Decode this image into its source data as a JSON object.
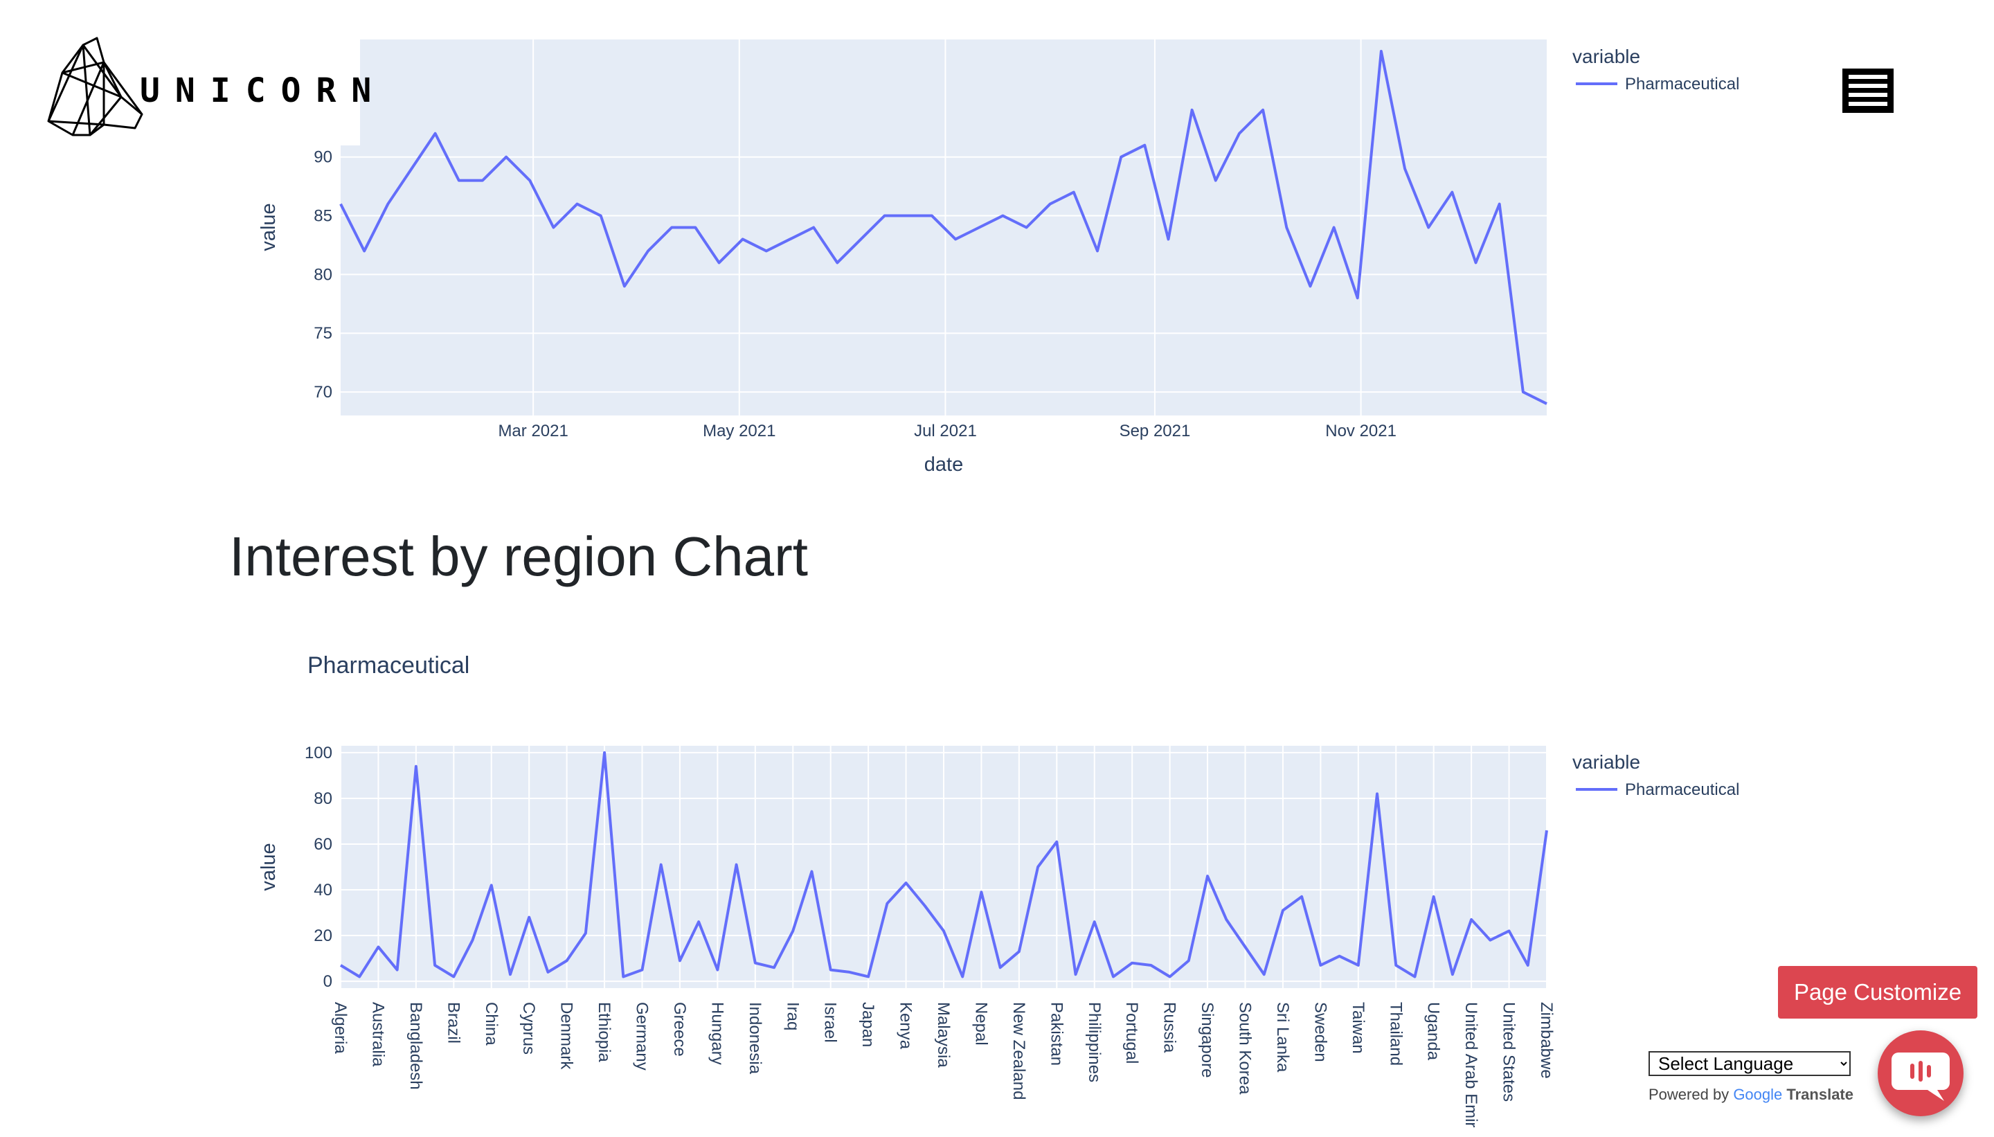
{
  "logo": {
    "text": "UNICORN"
  },
  "chart1": {
    "chart_data": {
      "type": "line",
      "title": "",
      "xlabel": "date",
      "ylabel": "value",
      "x_ticks": [
        "Mar 2021",
        "May 2021",
        "Jul 2021",
        "Sep 2021",
        "Nov 2021"
      ],
      "y_ticks": [
        "70",
        "75",
        "80",
        "85",
        "90"
      ],
      "ylim": [
        68,
        100
      ],
      "xlim": [
        "2021-01-03",
        "2021-12-26"
      ],
      "legend_title": "variable",
      "series": [
        {
          "name": "Pharmaceutical",
          "x": [
            "2021-01-03",
            "2021-01-10",
            "2021-01-17",
            "2021-01-24",
            "2021-01-31",
            "2021-02-07",
            "2021-02-14",
            "2021-02-21",
            "2021-02-28",
            "2021-03-07",
            "2021-03-14",
            "2021-03-21",
            "2021-03-28",
            "2021-04-04",
            "2021-04-11",
            "2021-04-18",
            "2021-04-25",
            "2021-05-02",
            "2021-05-09",
            "2021-05-16",
            "2021-05-23",
            "2021-05-30",
            "2021-06-06",
            "2021-06-13",
            "2021-06-20",
            "2021-06-27",
            "2021-07-04",
            "2021-07-11",
            "2021-07-18",
            "2021-07-25",
            "2021-08-01",
            "2021-08-08",
            "2021-08-15",
            "2021-08-22",
            "2021-08-29",
            "2021-09-05",
            "2021-09-12",
            "2021-09-19",
            "2021-09-26",
            "2021-10-03",
            "2021-10-10",
            "2021-10-17",
            "2021-10-24",
            "2021-10-31",
            "2021-11-07",
            "2021-11-14",
            "2021-11-21",
            "2021-11-28",
            "2021-12-05",
            "2021-12-12",
            "2021-12-19",
            "2021-12-26"
          ],
          "values": [
            86,
            82,
            86,
            89,
            92,
            88,
            88,
            90,
            88,
            84,
            86,
            85,
            79,
            82,
            84,
            84,
            81,
            83,
            82,
            83,
            84,
            81,
            83,
            85,
            85,
            85,
            83,
            84,
            85,
            84,
            86,
            87,
            82,
            90,
            91,
            83,
            94,
            88,
            92,
            94,
            84,
            79,
            84,
            78,
            99,
            89,
            84,
            87,
            81,
            86,
            70,
            69
          ]
        }
      ]
    }
  },
  "section": {
    "heading": "Interest by region Chart"
  },
  "chart2": {
    "chart_data": {
      "type": "line",
      "title": "Pharmaceutical",
      "xlabel": "",
      "ylabel": "value",
      "y_ticks": [
        "0",
        "20",
        "40",
        "60",
        "80",
        "100"
      ],
      "ylim": [
        -3,
        103
      ],
      "legend_title": "variable",
      "tick_labels": [
        "Algeria",
        "Australia",
        "Bangladesh",
        "Brazil",
        "China",
        "Cyprus",
        "Denmark",
        "Ethiopia",
        "Germany",
        "Greece",
        "Hungary",
        "Indonesia",
        "Iraq",
        "Israel",
        "Japan",
        "Kenya",
        "Malaysia",
        "Nepal",
        "New Zealand",
        "Pakistan",
        "Philippines",
        "Portugal",
        "Russia",
        "Singapore",
        "South Korea",
        "Sri Lanka",
        "Sweden",
        "Taiwan",
        "Thailand",
        "Uganda",
        "United Arab Emir",
        "United States",
        "Zimbabwe"
      ],
      "series": [
        {
          "name": "Pharmaceutical",
          "values": [
            7,
            2,
            15,
            5,
            94,
            7,
            2,
            18,
            42,
            3,
            28,
            4,
            9,
            21,
            100,
            2,
            5,
            51,
            9,
            26,
            5,
            51,
            8,
            6,
            22,
            48,
            5,
            4,
            2,
            34,
            43,
            33,
            22,
            2,
            39,
            6,
            13,
            50,
            61,
            3,
            26,
            2,
            8,
            7,
            2,
            9,
            46,
            27,
            15,
            3,
            31,
            37,
            7,
            11,
            7,
            82,
            7,
            2,
            37,
            3,
            27,
            18,
            22,
            7,
            66
          ]
        }
      ]
    }
  },
  "legend": {
    "series_name": "Pharmaceutical"
  },
  "customize": {
    "label": "Page Customize"
  },
  "translate": {
    "selected": "Select Language",
    "powered_by": "Powered by",
    "google": "Google",
    "translate": "Translate"
  },
  "icons": {
    "menu": "hamburger-icon",
    "chat": "chat-bubble-icon"
  },
  "colors": {
    "series": "#636efa",
    "plot_bg": "#e5ecf6",
    "button": "#dc4650"
  }
}
